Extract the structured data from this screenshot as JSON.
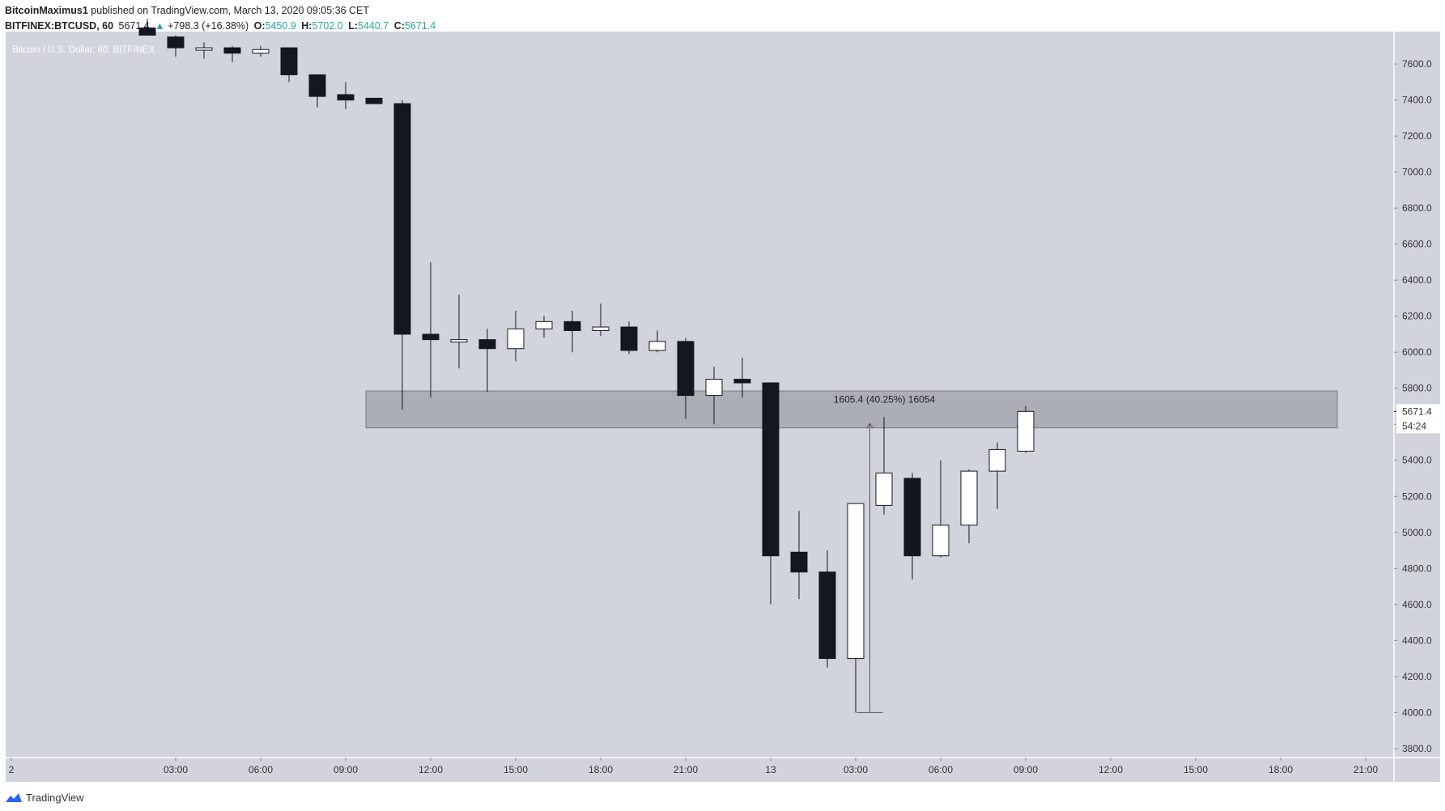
{
  "header": {
    "author": "BitcoinMaximus1",
    "published_text": "published on TradingView.com, March 13, 2020 09:05:36 CET",
    "symbol": "BITFINEX:BTCUSD, 60",
    "last": "5671.4",
    "arrow": "▲",
    "change": "+798.3 (+16.38%)",
    "o_label": "O:",
    "o_value": "5450.9",
    "h_label": "H:",
    "h_value": "5702.0",
    "l_label": "L:",
    "l_value": "5440.7",
    "c_label": "C:",
    "c_value": "5671.4"
  },
  "legend_text": "Bitcoin / U.S. Dollar, 60, BITFINEX",
  "footer": {
    "brand": "TradingView"
  },
  "colors": {
    "background": "#d1d4dc",
    "bear_candle": "#131722",
    "bull_candle": "#ffffff",
    "zone": "#a5a7ad",
    "accent_green": "#26a69a",
    "price_tag": "#ffffff"
  },
  "chart_data": {
    "type": "candlestick",
    "ylim": [
      3750,
      7780
    ],
    "y_ticks": [
      3800,
      4000,
      4200,
      4400,
      4600,
      4800,
      5000,
      5200,
      5400,
      5600,
      5800,
      6000,
      6200,
      6400,
      6600,
      6800,
      7000,
      7200,
      7400,
      7600
    ],
    "y_tick_labels": [
      "3800.0",
      "4000.0",
      "4200.0",
      "4400.0",
      "4600.0",
      "4800.0",
      "5000.0",
      "5200.0",
      "5400.0",
      "5600.0",
      "5800.0",
      "6000.0",
      "6200.0",
      "6400.0",
      "6600.0",
      "6800.0",
      "7000.0",
      "7200.0",
      "7400.0",
      "7600.0"
    ],
    "x_range_hours": [
      -3,
      46
    ],
    "x_ticks": [
      {
        "hour": -2.8,
        "label": "2"
      },
      {
        "hour": 3,
        "label": "03:00"
      },
      {
        "hour": 6,
        "label": "06:00"
      },
      {
        "hour": 9,
        "label": "09:00"
      },
      {
        "hour": 12,
        "label": "12:00"
      },
      {
        "hour": 15,
        "label": "15:00"
      },
      {
        "hour": 18,
        "label": "18:00"
      },
      {
        "hour": 21,
        "label": "21:00"
      },
      {
        "hour": 24,
        "label": "13"
      },
      {
        "hour": 27,
        "label": "03:00"
      },
      {
        "hour": 30,
        "label": "06:00"
      },
      {
        "hour": 33,
        "label": "09:00"
      },
      {
        "hour": 36,
        "label": "12:00"
      },
      {
        "hour": 39,
        "label": "15:00"
      },
      {
        "hour": 42,
        "label": "18:00"
      },
      {
        "hour": 45,
        "label": "21:00"
      }
    ],
    "candles": [
      {
        "t": 2,
        "o": 7800,
        "h": 7850,
        "l": 7760,
        "c": 7760
      },
      {
        "t": 3,
        "o": 7750,
        "h": 7760,
        "l": 7640,
        "c": 7690
      },
      {
        "t": 4,
        "o": 7680,
        "h": 7720,
        "l": 7630,
        "c": 7690
      },
      {
        "t": 5,
        "o": 7690,
        "h": 7700,
        "l": 7610,
        "c": 7660
      },
      {
        "t": 6,
        "o": 7660,
        "h": 7700,
        "l": 7640,
        "c": 7680
      },
      {
        "t": 7,
        "o": 7690,
        "h": 7690,
        "l": 7500,
        "c": 7540
      },
      {
        "t": 8,
        "o": 7540,
        "h": 7540,
        "l": 7360,
        "c": 7420
      },
      {
        "t": 9,
        "o": 7430,
        "h": 7500,
        "l": 7350,
        "c": 7400
      },
      {
        "t": 10,
        "o": 7410,
        "h": 7410,
        "l": 7380,
        "c": 7380
      },
      {
        "t": 11,
        "o": 7380,
        "h": 7400,
        "l": 5680,
        "c": 6100
      },
      {
        "t": 12,
        "o": 6100,
        "h": 6500,
        "l": 5750,
        "c": 6070
      },
      {
        "t": 13,
        "o": 6070,
        "h": 6320,
        "l": 5910,
        "c": 6070
      },
      {
        "t": 14,
        "o": 6070,
        "h": 6130,
        "l": 5780,
        "c": 6020
      },
      {
        "t": 15,
        "o": 6020,
        "h": 6230,
        "l": 5950,
        "c": 6130
      },
      {
        "t": 16,
        "o": 6130,
        "h": 6200,
        "l": 6080,
        "c": 6170
      },
      {
        "t": 17,
        "o": 6170,
        "h": 6230,
        "l": 6000,
        "c": 6120
      },
      {
        "t": 18,
        "o": 6120,
        "h": 6270,
        "l": 6090,
        "c": 6140
      },
      {
        "t": 19,
        "o": 6140,
        "h": 6170,
        "l": 5990,
        "c": 6010
      },
      {
        "t": 20,
        "o": 6010,
        "h": 6120,
        "l": 6000,
        "c": 6060
      },
      {
        "t": 21,
        "o": 6060,
        "h": 6080,
        "l": 5630,
        "c": 5760
      },
      {
        "t": 22,
        "o": 5760,
        "h": 5920,
        "l": 5600,
        "c": 5850
      },
      {
        "t": 23,
        "o": 5850,
        "h": 5970,
        "l": 5750,
        "c": 5830
      },
      {
        "t": 24,
        "o": 5830,
        "h": 5830,
        "l": 4600,
        "c": 4870
      },
      {
        "t": 25,
        "o": 4890,
        "h": 5120,
        "l": 4630,
        "c": 4780
      },
      {
        "t": 26,
        "o": 4780,
        "h": 4900,
        "l": 4250,
        "c": 4300
      },
      {
        "t": 27,
        "o": 4300,
        "h": 5160,
        "l": 4000,
        "c": 5160
      },
      {
        "t": 28,
        "o": 5150,
        "h": 5640,
        "l": 5100,
        "c": 5330
      },
      {
        "t": 29,
        "o": 5300,
        "h": 5330,
        "l": 4740,
        "c": 4870
      },
      {
        "t": 30,
        "o": 4870,
        "h": 5400,
        "l": 4860,
        "c": 5040
      },
      {
        "t": 31,
        "o": 5040,
        "h": 5350,
        "l": 4940,
        "c": 5340
      },
      {
        "t": 32,
        "o": 5340,
        "h": 5500,
        "l": 5130,
        "c": 5460
      },
      {
        "t": 33,
        "o": 5450.9,
        "h": 5702.0,
        "l": 5440.7,
        "c": 5671.4
      }
    ],
    "zone": {
      "from_hour": 10,
      "to_hour": 44,
      "y_low": 5580,
      "y_high": 5785
    },
    "measure": {
      "hour": 27.5,
      "y_low": 4000,
      "y_high": 5605,
      "label": "1605.4 (40.25%) 16054"
    },
    "last_price_label": "5671.4",
    "countdown_label": "54:24"
  }
}
